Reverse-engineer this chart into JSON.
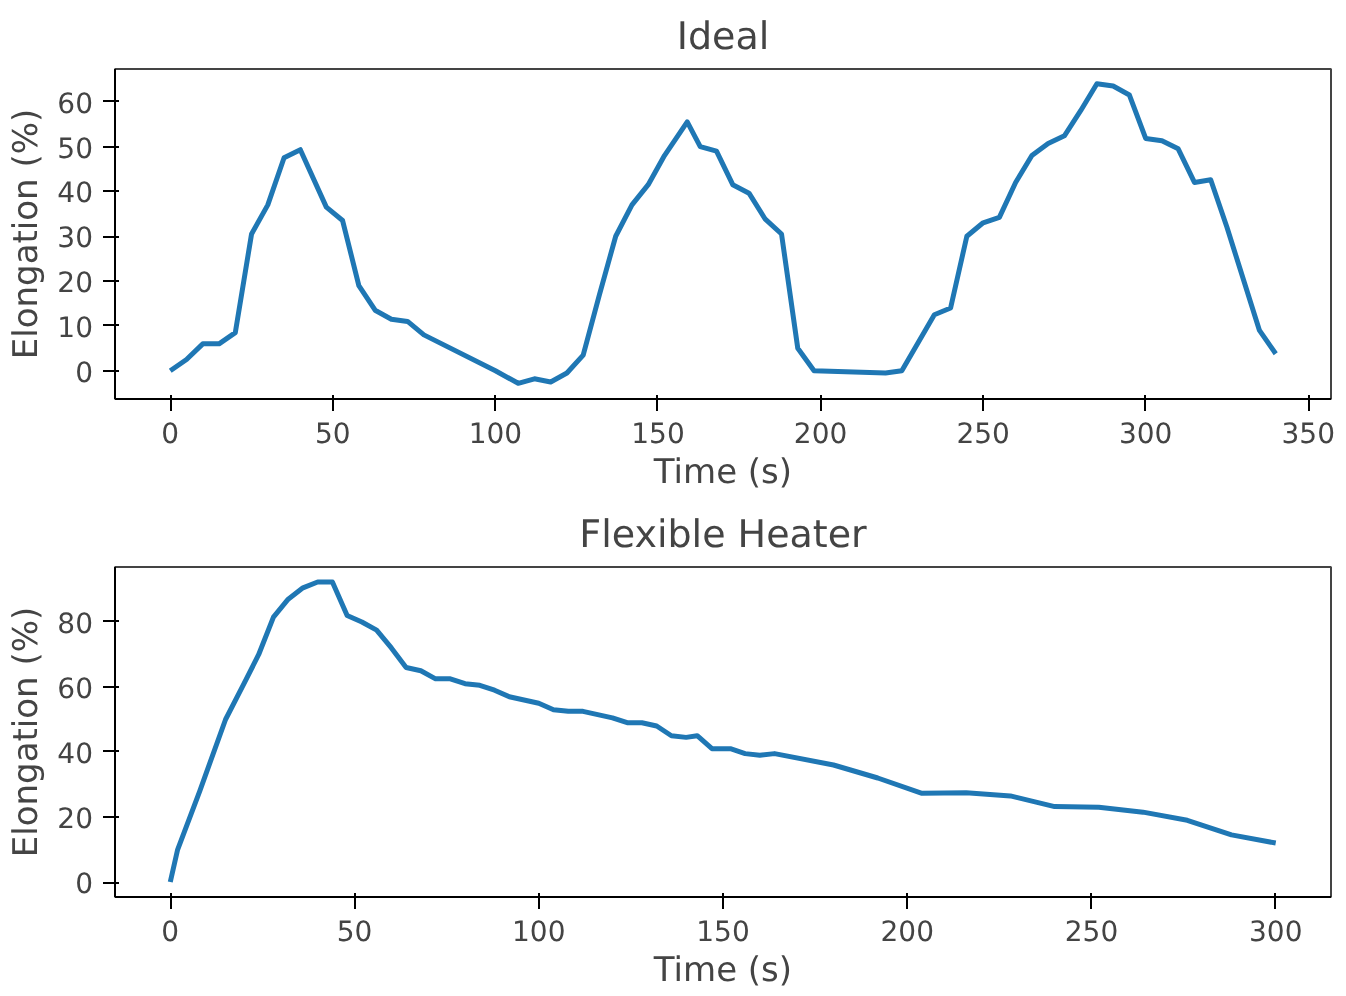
{
  "chart_data": [
    {
      "type": "line",
      "title": "Ideal",
      "xlabel": "Time (s)",
      "ylabel": "Elongation (%)",
      "xlim": [
        -17,
        357
      ],
      "ylim": [
        -6.3,
        67.3
      ],
      "xticks": [
        0,
        50,
        100,
        150,
        200,
        250,
        300,
        350
      ],
      "yticks": [
        0,
        10,
        20,
        30,
        40,
        50,
        60
      ],
      "grid": false,
      "series": [
        {
          "color": "#1f77b4",
          "x": [
            0,
            5,
            10,
            15,
            20,
            25,
            30,
            35,
            40,
            48,
            53,
            58,
            63,
            68,
            73,
            78,
            100,
            107,
            112,
            117,
            122,
            127,
            132,
            137,
            142,
            147,
            152,
            159,
            163,
            168,
            173,
            178,
            183,
            188,
            193,
            198,
            220,
            225,
            235,
            240,
            245,
            250,
            255,
            260,
            265,
            270,
            275,
            280,
            285,
            290,
            295,
            300,
            305,
            310,
            315,
            320,
            325,
            335,
            340
          ],
          "values": [
            0,
            2.5,
            6,
            6,
            8.5,
            30.5,
            37,
            47.5,
            49.3,
            36.5,
            33.5,
            19,
            13.5,
            11.5,
            11,
            8,
            0,
            -2.8,
            -1.8,
            -2.5,
            -0.5,
            3.5,
            17,
            30,
            37,
            41.5,
            48,
            55.5,
            50,
            49,
            41.5,
            39.6,
            33.8,
            30.5,
            5,
            0,
            -0.5,
            0,
            12.5,
            14,
            30,
            33,
            34.2,
            42,
            48,
            50.7,
            52.4,
            58,
            64,
            63.5,
            61.5,
            51.8,
            51.3,
            49.5,
            42,
            42.6,
            32,
            9,
            3.8
          ]
        }
      ]
    },
    {
      "type": "line",
      "title": "Flexible Heater",
      "xlabel": "Time (s)",
      "ylabel": "Elongation (%)",
      "xlim": [
        -15,
        315
      ],
      "ylim": [
        -4.6,
        96.9
      ],
      "xticks": [
        0,
        50,
        100,
        150,
        200,
        250,
        300
      ],
      "yticks": [
        0,
        20,
        40,
        60,
        80
      ],
      "grid": false,
      "series": [
        {
          "color": "#1f77b4",
          "x": [
            0,
            2,
            8,
            15,
            20,
            24,
            28,
            32,
            36,
            40,
            44,
            48,
            52,
            56,
            60,
            64,
            68,
            72,
            76,
            80,
            84,
            88,
            92,
            100,
            104,
            108,
            112,
            120,
            124,
            128,
            132,
            136,
            140,
            143,
            147,
            152,
            156,
            160,
            164,
            180,
            192,
            204,
            216,
            228,
            240,
            252,
            264,
            276,
            288,
            300
          ],
          "values": [
            0,
            10,
            28,
            50,
            61,
            70,
            81.5,
            87,
            90.5,
            92.3,
            92.3,
            82,
            80,
            77.5,
            72,
            66,
            65,
            62.5,
            62.5,
            61,
            60.5,
            59,
            57,
            55,
            53,
            52.5,
            52.5,
            50.5,
            49,
            49,
            48,
            45,
            44.5,
            45,
            41,
            41,
            39.5,
            39,
            39.5,
            36,
            32,
            27.3,
            27.5,
            26.5,
            23.2,
            23,
            21.5,
            19,
            14.5,
            12
          ]
        }
      ]
    }
  ]
}
